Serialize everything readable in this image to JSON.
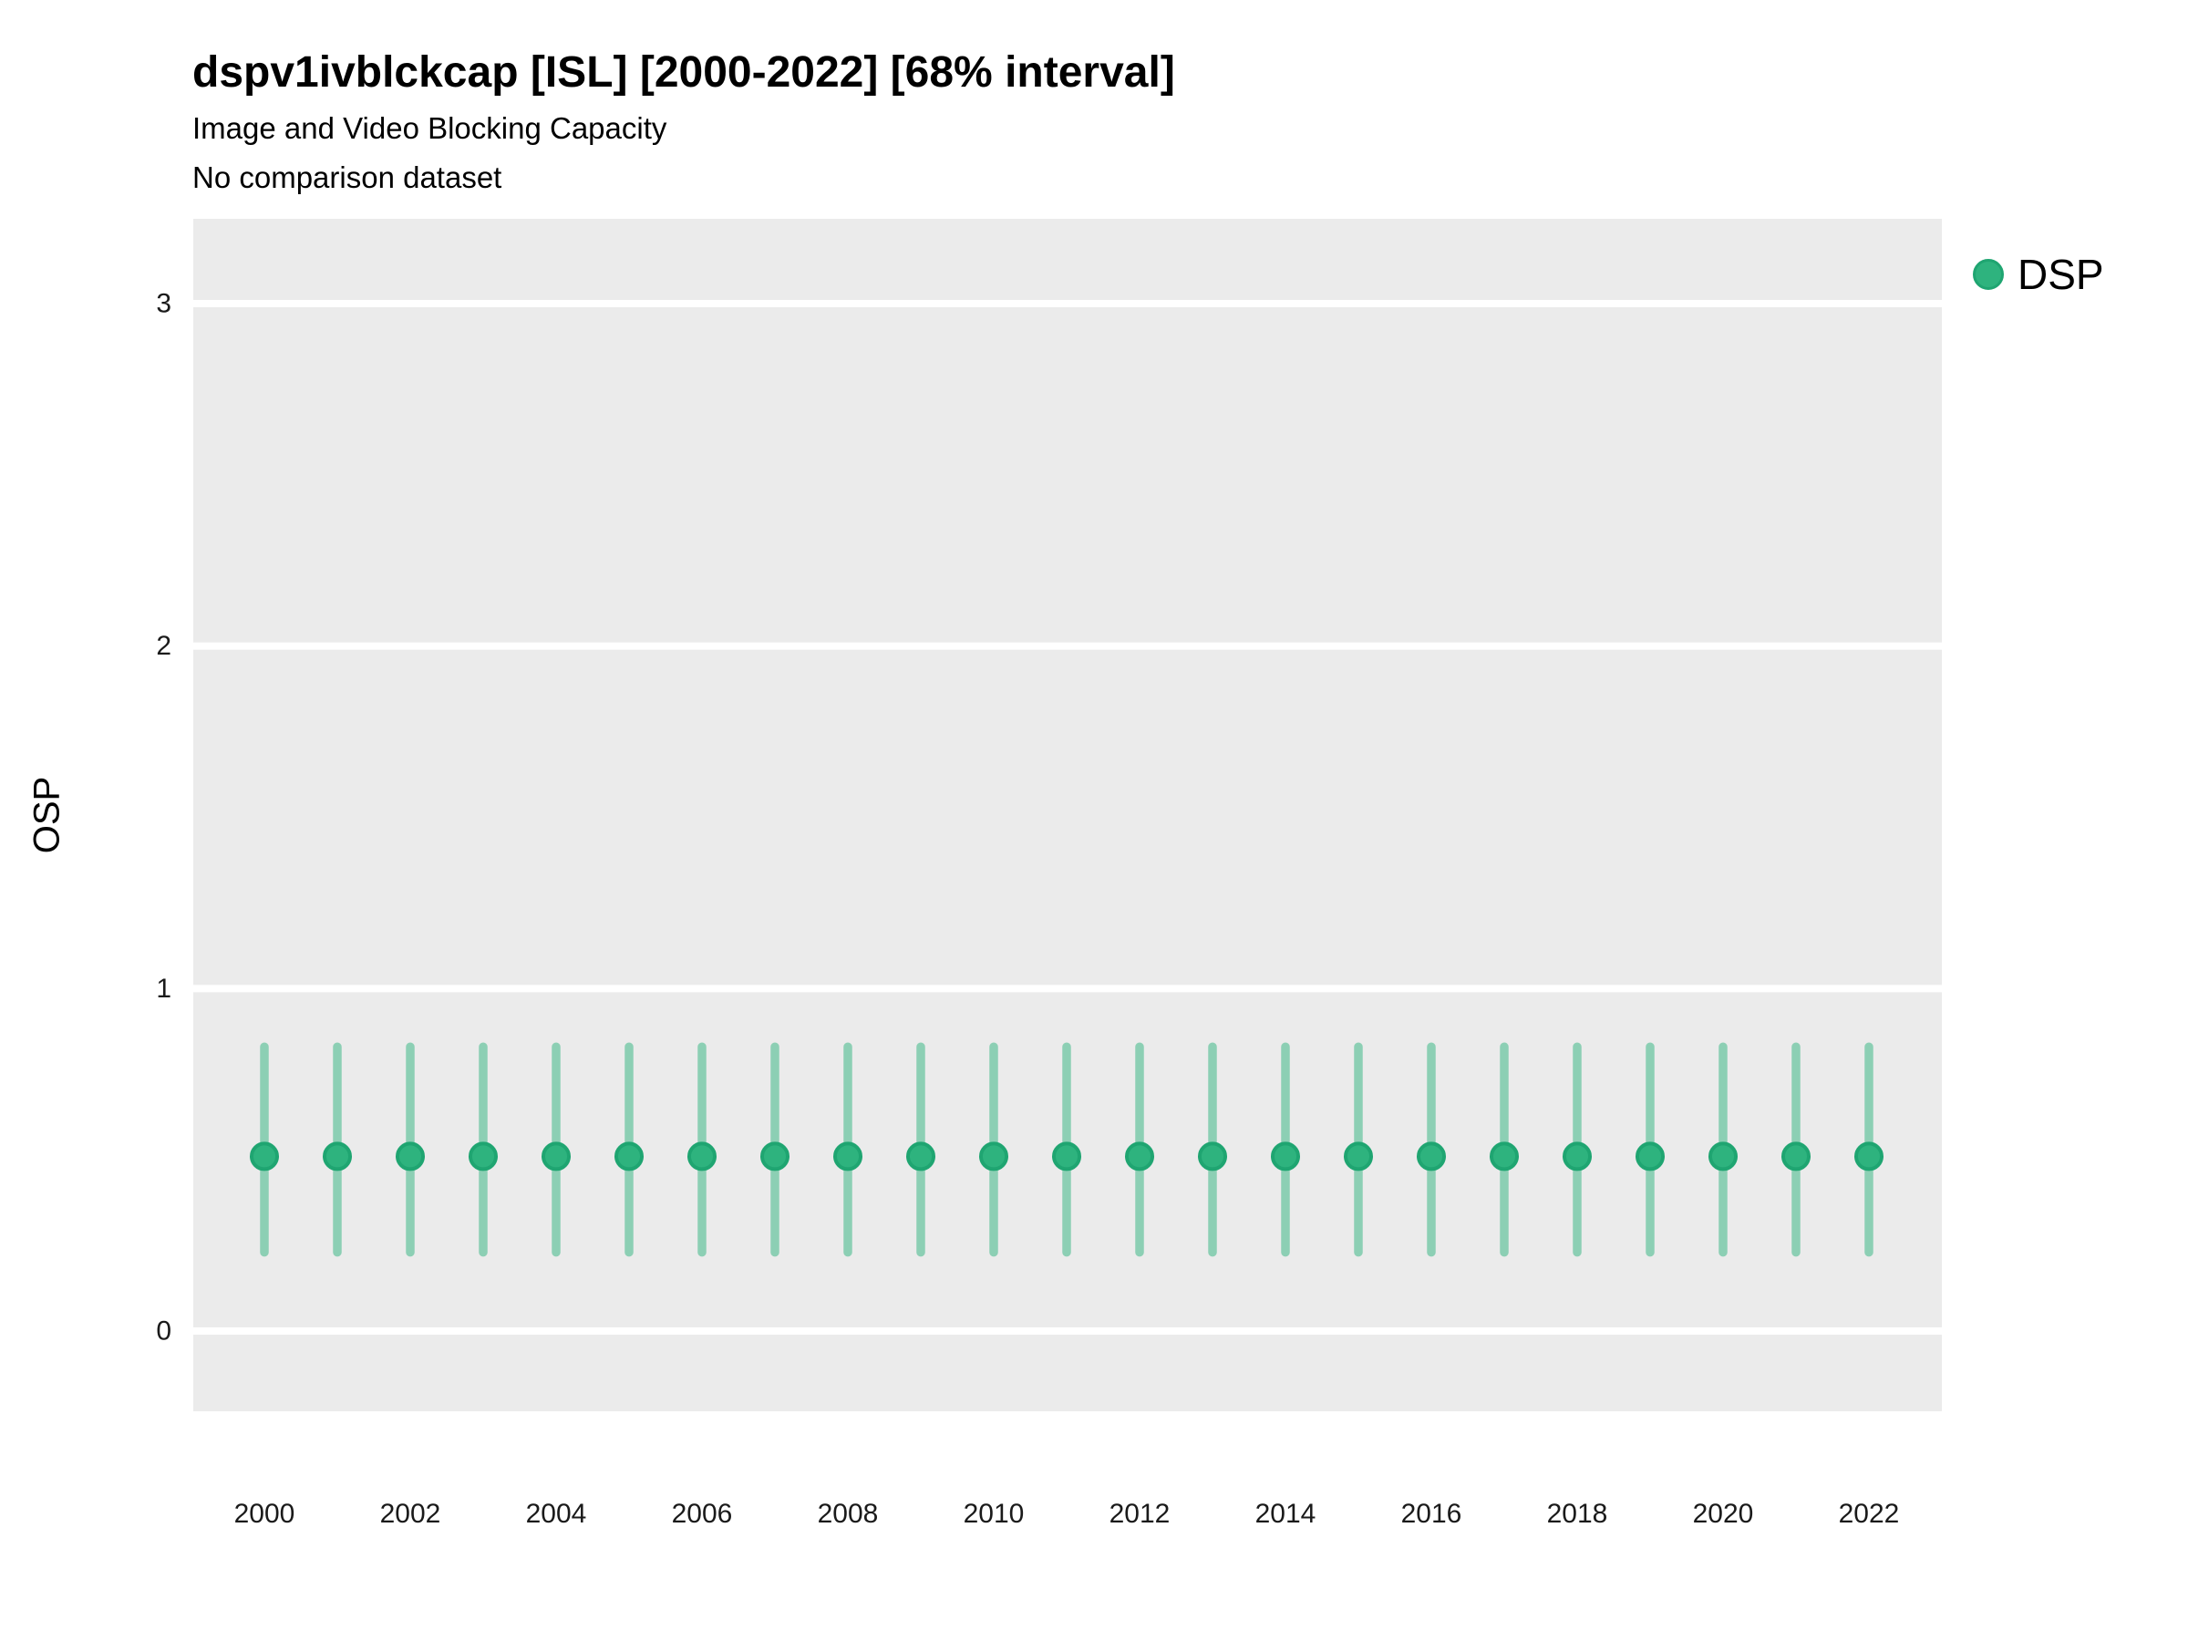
{
  "chart_data": {
    "type": "pointrange",
    "title": "dspv1ivblckcap [ISL] [2000-2022] [68% interval]",
    "subtitle": "Image and Video Blocking Capacity",
    "subtitle2": "No comparison dataset",
    "xlabel": "",
    "ylabel": "OSP",
    "interval_label": "68% interval",
    "legend": {
      "position": "right",
      "entries": [
        {
          "label": "DSP",
          "color": "#2eb37e"
        }
      ]
    },
    "x": [
      2000,
      2001,
      2002,
      2003,
      2004,
      2005,
      2006,
      2007,
      2008,
      2009,
      2010,
      2011,
      2012,
      2013,
      2014,
      2015,
      2016,
      2017,
      2018,
      2019,
      2020,
      2021,
      2022
    ],
    "series": [
      {
        "name": "DSP",
        "mean": [
          0.51,
          0.51,
          0.51,
          0.51,
          0.51,
          0.51,
          0.51,
          0.51,
          0.51,
          0.51,
          0.51,
          0.51,
          0.51,
          0.51,
          0.51,
          0.51,
          0.51,
          0.51,
          0.51,
          0.51,
          0.51,
          0.51,
          0.51
        ],
        "lower": [
          0.23,
          0.23,
          0.23,
          0.23,
          0.23,
          0.23,
          0.23,
          0.23,
          0.23,
          0.23,
          0.23,
          0.23,
          0.23,
          0.23,
          0.23,
          0.23,
          0.23,
          0.23,
          0.23,
          0.23,
          0.23,
          0.23,
          0.23
        ],
        "upper": [
          0.83,
          0.83,
          0.83,
          0.83,
          0.83,
          0.83,
          0.83,
          0.83,
          0.83,
          0.83,
          0.83,
          0.83,
          0.83,
          0.83,
          0.83,
          0.83,
          0.83,
          0.83,
          0.83,
          0.83,
          0.83,
          0.83,
          0.83
        ]
      }
    ],
    "xticks": [
      2000,
      2002,
      2004,
      2006,
      2008,
      2010,
      2012,
      2014,
      2016,
      2018,
      2020,
      2022
    ],
    "yticks": [
      0,
      1,
      2,
      3
    ],
    "xlim": [
      1999,
      2023
    ],
    "ylim": [
      -0.23,
      3.25
    ],
    "grid": "major-horizontal-white-on-gray",
    "colors": {
      "point_fill": "#2eb37e",
      "point_stroke": "#1fa571",
      "bar": "rgba(46,179,126,0.5)",
      "panel": "#ebebeb",
      "gridline": "#ffffff",
      "text": "#000000",
      "tick_text": "#1a1a1a"
    }
  }
}
